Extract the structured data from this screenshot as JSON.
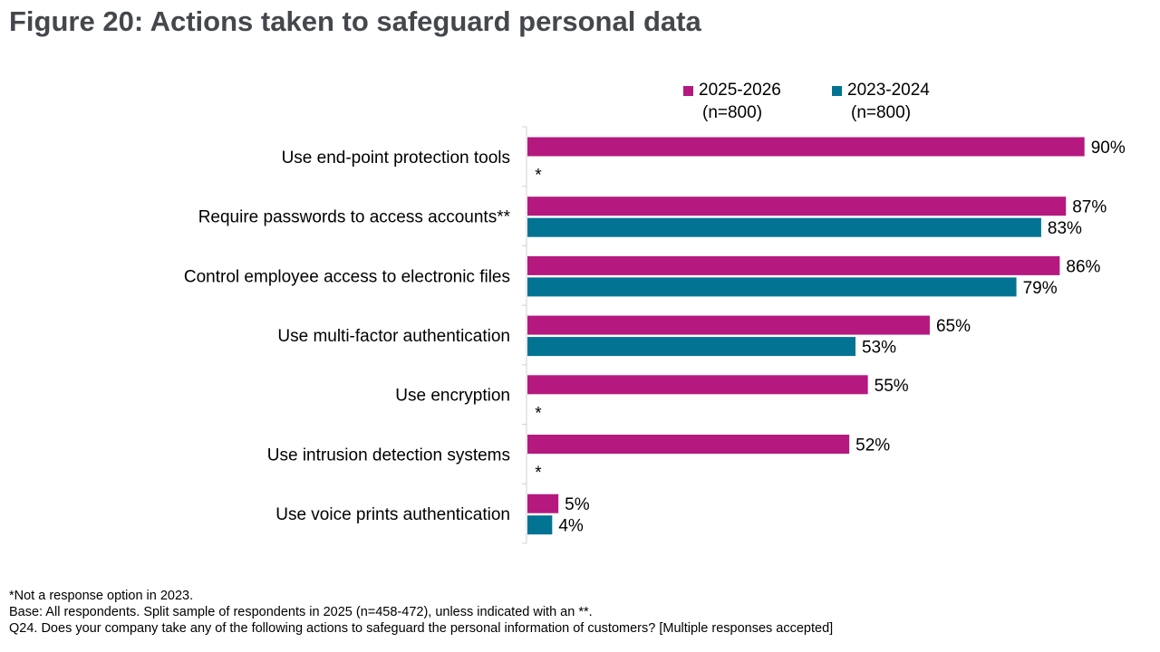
{
  "title": "Figure 20: Actions taken to safeguard personal data",
  "colors": {
    "series_2025": "#b5197f",
    "series_2023": "#027393",
    "axis": "#d0d0d0",
    "title": "#44474c"
  },
  "legend": [
    {
      "label": "2025-2026",
      "sub": "(n=800)"
    },
    {
      "label": "2023-2024",
      "sub": "(n=800)"
    }
  ],
  "chart_data": {
    "type": "bar",
    "orientation": "horizontal",
    "title": "Figure 20: Actions taken to safeguard personal data",
    "categories": [
      "Use end-point protection tools",
      "Require passwords to access accounts**",
      "Control employee access to electronic files",
      "Use multi-factor authentication",
      "Use encryption",
      "Use intrusion detection systems",
      "Use voice prints authentication"
    ],
    "series": [
      {
        "name": "2025-2026",
        "values": [
          90,
          87,
          86,
          65,
          55,
          52,
          5
        ],
        "labels": [
          "90%",
          "87%",
          "86%",
          "65%",
          "55%",
          "52%",
          "5%"
        ]
      },
      {
        "name": "2023-2024",
        "values": [
          null,
          83,
          79,
          53,
          null,
          null,
          4
        ],
        "labels": [
          "*",
          "83%",
          "79%",
          "53%",
          "*",
          "*",
          "4%"
        ]
      }
    ],
    "xlim": [
      0,
      100
    ],
    "grid": false,
    "legend_position": "top-right"
  },
  "footnotes": [
    "*Not a response option in 2023.",
    "Base: All respondents. Split sample of respondents in 2025 (n=458-472), unless indicated with an **.",
    "Q24. Does your company take any of the following actions to safeguard the personal information of customers? [Multiple responses accepted]"
  ]
}
